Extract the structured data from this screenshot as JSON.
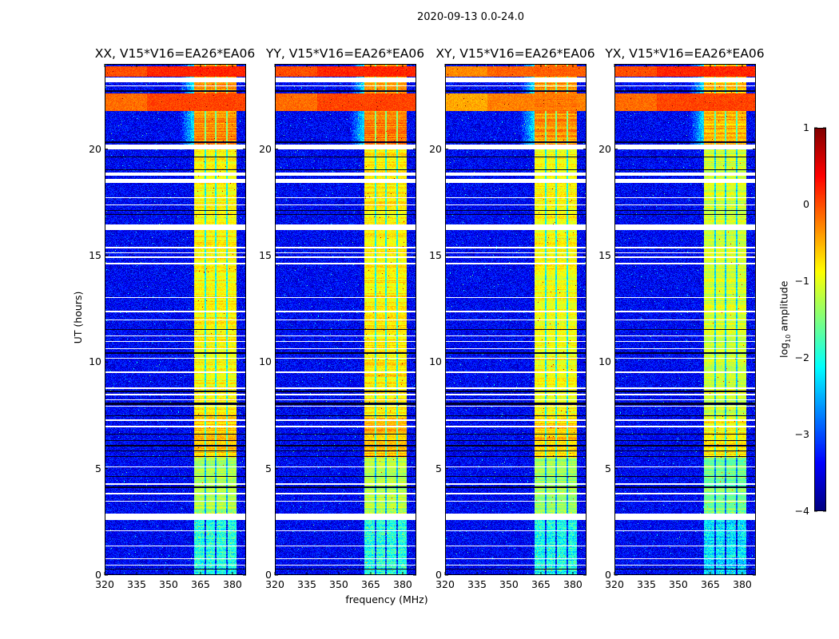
{
  "chart_data": {
    "type": "heatmap",
    "title": "2020-09-13 0.0-24.0",
    "xlabel": "frequency (MHz)",
    "ylabel": "UT (hours)",
    "xlim": [
      320,
      386.4
    ],
    "ylim": [
      0,
      24
    ],
    "xticks": [
      "320",
      "335",
      "350",
      "365",
      "380"
    ],
    "xtick_values": [
      320,
      335,
      350,
      365,
      380
    ],
    "yticks": [
      "0",
      "5",
      "10",
      "15",
      "20"
    ],
    "ytick_values": [
      0,
      5,
      10,
      15,
      20
    ],
    "panels": [
      {
        "title": "XX, V15*V16=EA26*EA06",
        "band_offset": 0.0
      },
      {
        "title": "YY, V15*V16=EA26*EA06",
        "band_offset": 0.05
      },
      {
        "title": "XY, V15*V16=EA26*EA06",
        "band_offset": -0.05
      },
      {
        "title": "YX, V15*V16=EA26*EA06",
        "band_offset": -0.25
      }
    ],
    "colorbar": {
      "label_main": "log",
      "label_sub": "10",
      "label_rest": " amplitude",
      "colormap": "jet",
      "range": [
        -4,
        1
      ],
      "ticks": [
        "1",
        "0",
        "−1",
        "−2",
        "−3",
        "−4"
      ],
      "tick_values": [
        1,
        0,
        -1,
        -2,
        -3,
        -4
      ]
    },
    "features": {
      "background_level": -3.4,
      "bright_band_MHz": [
        362,
        382
      ],
      "subband_gaps_MHz": [
        367.2,
        372.2,
        377.4
      ],
      "band_level_by_hour": [
        {
          "from": 0,
          "to": 2.6,
          "level": -2.0
        },
        {
          "from": 2.9,
          "to": 5.5,
          "level": -1.3
        },
        {
          "from": 5.5,
          "to": 7.5,
          "level": -0.6
        },
        {
          "from": 7.5,
          "to": 20,
          "level": -0.85
        },
        {
          "from": 20,
          "to": 24,
          "level": -0.3
        }
      ],
      "broadband_rfi_hours": [
        [
          23.4,
          23.9,
          0.2
        ],
        [
          21.8,
          22.6,
          0.05
        ]
      ],
      "flagged_hours": [
        [
          23.15,
          23.35
        ],
        [
          22.95,
          23.0
        ],
        [
          20.0,
          20.2
        ],
        [
          18.75,
          18.9
        ],
        [
          18.4,
          18.6
        ],
        [
          17.7,
          17.75
        ],
        [
          17.35,
          17.4
        ],
        [
          16.2,
          16.45
        ],
        [
          15.35,
          15.4
        ],
        [
          15.1,
          15.15
        ],
        [
          14.9,
          14.95
        ],
        [
          14.6,
          14.65
        ],
        [
          13.0,
          13.05
        ],
        [
          12.35,
          12.4
        ],
        [
          11.95,
          12.0
        ],
        [
          11.2,
          11.25
        ],
        [
          10.95,
          11.0
        ],
        [
          10.6,
          10.65
        ],
        [
          10.15,
          10.2
        ],
        [
          9.5,
          9.55
        ],
        [
          8.75,
          8.8
        ],
        [
          8.45,
          8.5
        ],
        [
          8.2,
          8.25
        ],
        [
          7.9,
          7.95
        ],
        [
          7.25,
          7.3
        ],
        [
          6.95,
          7.0
        ],
        [
          5.05,
          5.1
        ],
        [
          4.25,
          4.3
        ],
        [
          3.8,
          3.85
        ],
        [
          3.45,
          3.5
        ],
        [
          2.6,
          2.9
        ],
        [
          2.05,
          2.1
        ],
        [
          1.35,
          1.4
        ],
        [
          0.75,
          0.8
        ],
        [
          0.45,
          0.5
        ]
      ],
      "dark_hours": [
        [
          22.7,
          22.75
        ],
        [
          20.3,
          20.35
        ],
        [
          19.6,
          19.65
        ],
        [
          19.0,
          19.05
        ],
        [
          17.1,
          17.15
        ],
        [
          16.9,
          16.95
        ],
        [
          11.5,
          11.55
        ],
        [
          10.4,
          10.45
        ],
        [
          8.6,
          8.65
        ],
        [
          8.0,
          8.1
        ],
        [
          7.45,
          7.5
        ],
        [
          6.6,
          6.65
        ],
        [
          6.3,
          6.35
        ],
        [
          6.05,
          6.1
        ],
        [
          5.8,
          5.85
        ],
        [
          5.55,
          5.6
        ],
        [
          4.6,
          4.65
        ],
        [
          4.1,
          4.15
        ],
        [
          0.25,
          0.3
        ]
      ]
    }
  }
}
